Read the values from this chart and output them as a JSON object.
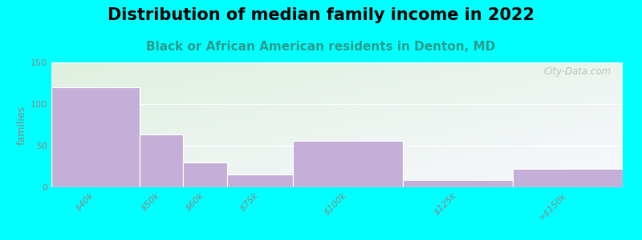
{
  "title": "Distribution of median family income in 2022",
  "subtitle": "Black or African American residents in Denton, MD",
  "categories": [
    "$40k",
    "$50k",
    "$60k",
    "$75k",
    "$100k",
    "$125k",
    ">$150k"
  ],
  "values": [
    120,
    63,
    30,
    15,
    56,
    9,
    22
  ],
  "bar_color": "#c4afd8",
  "bar_edge_color": "#c4afd8",
  "ylabel": "families",
  "ylim": [
    0,
    150
  ],
  "yticks": [
    0,
    50,
    100,
    150
  ],
  "background_color": "#00ffff",
  "grad_color_topleft": "#dff0df",
  "grad_color_bottomright": "#f8f8ff",
  "title_fontsize": 15,
  "subtitle_fontsize": 11,
  "subtitle_color": "#2a9d8f",
  "watermark": "City-Data.com",
  "watermark_color": "#a8bfb0",
  "tick_label_color": "#888888",
  "tick_label_fontsize": 8,
  "ylabel_fontsize": 9,
  "ylabel_color": "#888888",
  "bar_widths": [
    2,
    1,
    1,
    1.5,
    2.5,
    2.5,
    2.5
  ],
  "bar_lefts": [
    0,
    2,
    3,
    4,
    5.5,
    8,
    10.5
  ]
}
